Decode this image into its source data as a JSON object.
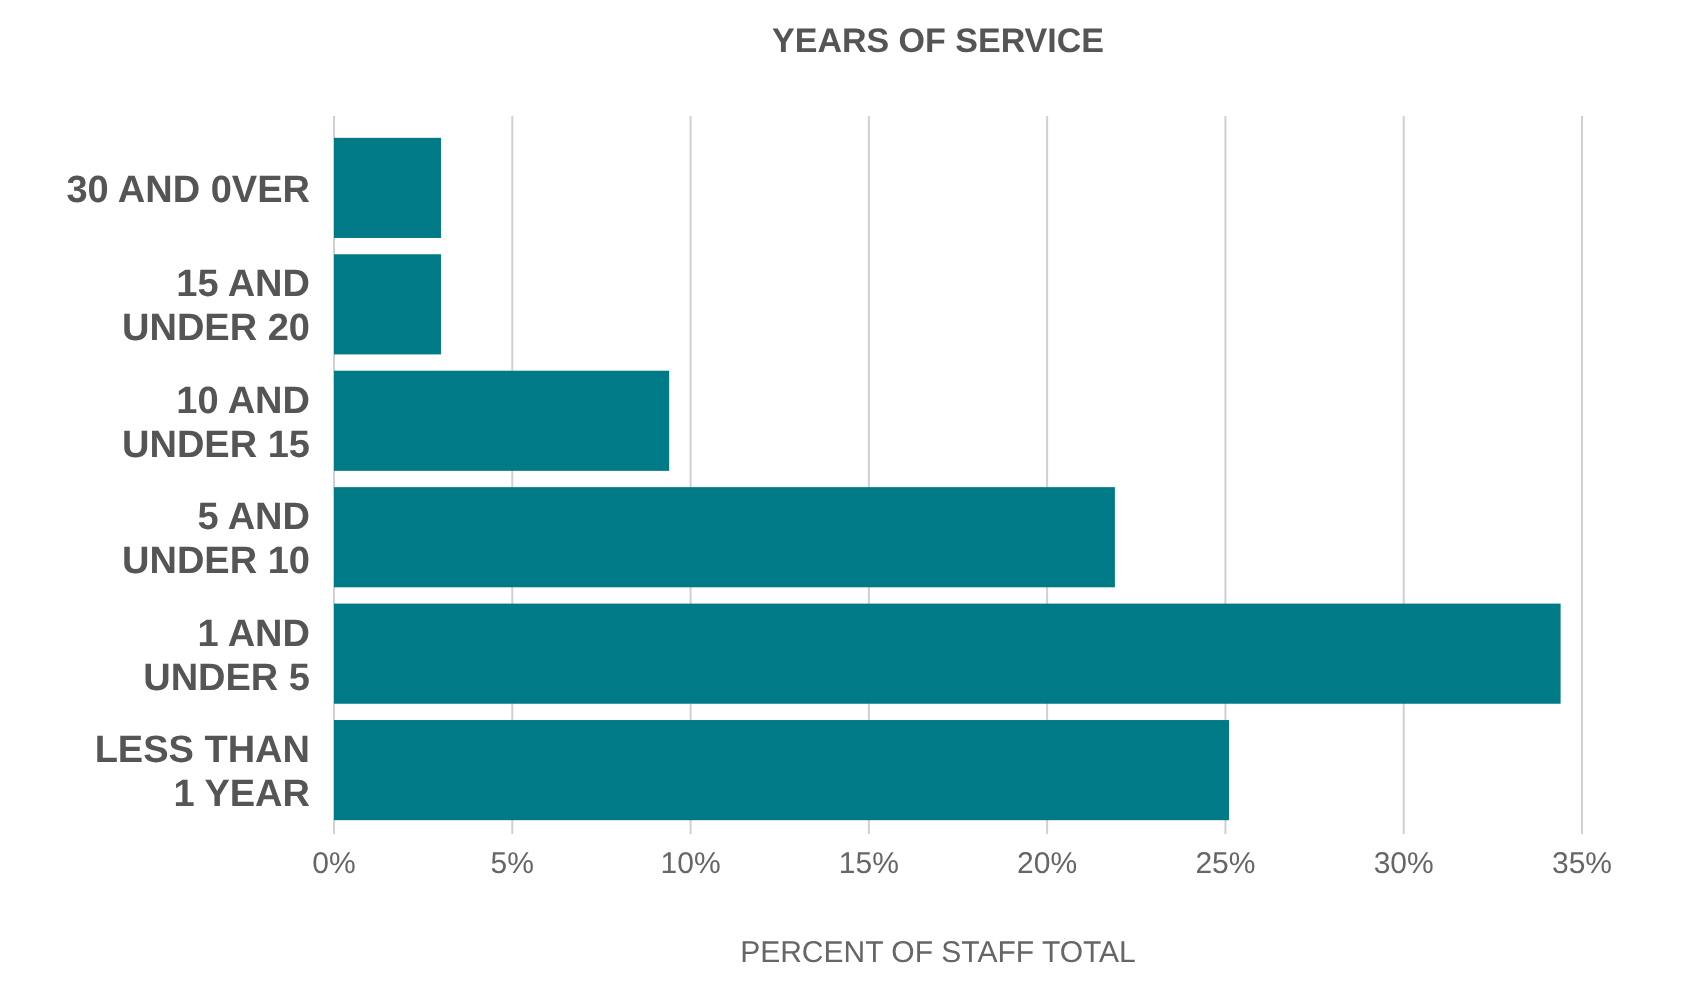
{
  "chart_data": {
    "type": "bar",
    "orientation": "horizontal",
    "title": "YEARS OF SERVICE",
    "xlabel": "PERCENT OF STAFF TOTAL",
    "categories": [
      "30 AND 0VER",
      "15 AND UNDER 20",
      "10 AND UNDER 15",
      "5 AND UNDER 10",
      "1 AND UNDER 5",
      "LESS THAN 1 YEAR"
    ],
    "values": [
      3.0,
      3.0,
      9.4,
      21.9,
      34.4,
      25.1
    ],
    "color": "#007a87",
    "xlim": [
      0,
      35
    ],
    "xticks": [
      {
        "value": 0,
        "label": "0%"
      },
      {
        "value": 5,
        "label": "5%"
      },
      {
        "value": 10,
        "label": "10%"
      },
      {
        "value": 15,
        "label": "15%"
      },
      {
        "value": 20,
        "label": "20%"
      },
      {
        "value": 25,
        "label": "25%"
      },
      {
        "value": 30,
        "label": "30%"
      },
      {
        "value": 35,
        "label": "35%"
      }
    ],
    "grid": "x"
  }
}
